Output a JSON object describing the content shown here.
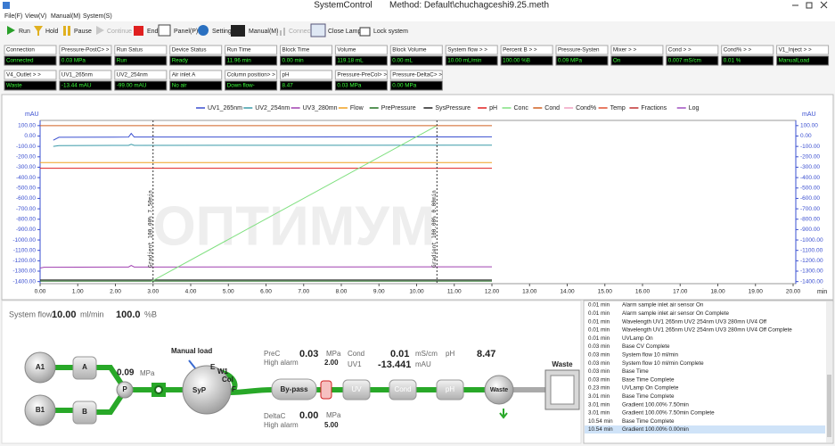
{
  "window": {
    "title": "SystemControl",
    "method": "Method:  Default\\chuchagceshi9.25.meth"
  },
  "menu": [
    "File(F)",
    "View(V)",
    "Manual(M)",
    "System(S)"
  ],
  "toolbar": [
    "Run",
    "Hold",
    "Pause",
    "Continue",
    "End",
    "Panel(P)",
    "Setting",
    "Manual(M)",
    "Connect",
    "Close Lamp",
    "Lock system"
  ],
  "status": [
    [
      {
        "label": "Connection",
        "value": "Connected"
      },
      {
        "label": "Pressure-PostC> >",
        "value": "0.03 MPa"
      },
      {
        "label": "Run Satus",
        "value": "Run"
      },
      {
        "label": "Device Status",
        "value": "Ready"
      },
      {
        "label": "Run Time",
        "value": "11.96 min"
      },
      {
        "label": "Block Time",
        "value": "0.00 min"
      },
      {
        "label": "Volume",
        "value": "119.18 mL"
      },
      {
        "label": "Block Volume",
        "value": "0.00 mL"
      },
      {
        "label": "System flow   > >",
        "value": "10.00 mL/min"
      },
      {
        "label": "Percent B   > >",
        "value": "100.00 %B"
      },
      {
        "label": "Pressure-Systen",
        "value": "0.09 MPa"
      },
      {
        "label": "Mixer        > >",
        "value": "On"
      },
      {
        "label": "Cond         > >",
        "value": "0.007 mS/cm"
      },
      {
        "label": "Cond%       > >",
        "value": "0.01 %"
      },
      {
        "label": "V1_Inject   > >",
        "value": "ManualLoad"
      }
    ],
    [
      {
        "label": "V4_Outlet    > >",
        "value": "Waste"
      },
      {
        "label": "UV1_265nm",
        "value": "-13.44 mAU"
      },
      {
        "label": "UV2_254nm",
        "value": "-99.00 mAU"
      },
      {
        "label": "Air inlet A",
        "value": "No air"
      },
      {
        "label": "Column position> >",
        "value": "Down flow-"
      },
      {
        "label": "pH",
        "value": "8.47"
      },
      {
        "label": "Pressure-PreCol> >",
        "value": "0.03 MPa"
      },
      {
        "label": "Pressure-DeltaC> >",
        "value": "0.00 MPa"
      }
    ]
  ],
  "chart": {
    "type": "line",
    "y_label": "mAU",
    "x_label": "min",
    "watermark": "ОПТИМУМ",
    "xlim": [
      0,
      20
    ],
    "ylim": [
      -1420,
      150
    ],
    "xticks": [
      {
        "value": 0,
        "label": "0.00"
      },
      {
        "value": 1,
        "label": "1.00"
      },
      {
        "value": 2,
        "label": "2.00"
      },
      {
        "value": 3,
        "label": "3.00"
      },
      {
        "value": 4,
        "label": "4.00"
      },
      {
        "value": 5,
        "label": "5.00"
      },
      {
        "value": 6,
        "label": "6.00"
      },
      {
        "value": 7,
        "label": "7.00"
      },
      {
        "value": 8,
        "label": "8.00"
      },
      {
        "value": 9,
        "label": "9.00"
      },
      {
        "value": 10,
        "label": "10.00"
      },
      {
        "value": 11,
        "label": "11.00"
      },
      {
        "value": 12,
        "label": "12.00"
      },
      {
        "value": 13,
        "label": "13.00"
      },
      {
        "value": 14,
        "label": "14.00"
      },
      {
        "value": 15,
        "label": "15.00"
      },
      {
        "value": 16,
        "label": "16.00"
      },
      {
        "value": 17,
        "label": "17.00"
      },
      {
        "value": 18,
        "label": "18.00"
      },
      {
        "value": 19,
        "label": "19.00"
      },
      {
        "value": 20,
        "label": "20.00"
      }
    ],
    "yticks": [
      {
        "value": 100,
        "label": "100.00"
      },
      {
        "value": 0,
        "label": "0.00"
      },
      {
        "value": -100,
        "label": "-100.00"
      },
      {
        "value": -200,
        "label": "-200.00"
      },
      {
        "value": -300,
        "label": "-300.00"
      },
      {
        "value": -400,
        "label": "-400.00"
      },
      {
        "value": -500,
        "label": "-500.00"
      },
      {
        "value": -600,
        "label": "-600.00"
      },
      {
        "value": -700,
        "label": "-700.00"
      },
      {
        "value": -800,
        "label": "-800.00"
      },
      {
        "value": -900,
        "label": "-900.00"
      },
      {
        "value": -1000,
        "label": "-1000.00"
      },
      {
        "value": -1100,
        "label": "-1100.00"
      },
      {
        "value": -1200,
        "label": "-1200.00"
      },
      {
        "value": -1300,
        "label": "-1300.00"
      },
      {
        "value": -1400,
        "label": "-1400.00"
      }
    ],
    "series": [
      {
        "name": "UV1_265nm",
        "color": "#3a4fd0",
        "x": [
          0.35,
          0.5,
          2.35,
          2.42,
          2.5,
          12
        ],
        "values": [
          -40,
          -12,
          -10,
          25,
          -10,
          -8
        ]
      },
      {
        "name": "UV2_254nm",
        "color": "#3a9aa8",
        "x": [
          0.35,
          0.5,
          2.35,
          2.42,
          2.5,
          12
        ],
        "values": [
          -100,
          -92,
          -90,
          -80,
          -90,
          -88
        ]
      },
      {
        "name": "UV3_280mn",
        "color": "#a040b0",
        "x": [
          0,
          0.1,
          2.35,
          2.42,
          2.5,
          12
        ],
        "values": [
          -1270,
          -1262,
          -1260,
          -1245,
          -1260,
          -1258
        ]
      },
      {
        "name": "Flow",
        "color": "#f0a020",
        "x": [
          0,
          12
        ],
        "values": [
          -255,
          -255
        ]
      },
      {
        "name": "PrePressure",
        "color": "#207020",
        "x": [
          0,
          12
        ],
        "values": [
          -1395,
          -1395
        ]
      },
      {
        "name": "SysPressure",
        "color": "#202020",
        "x": [
          0,
          12
        ],
        "values": [
          -1385,
          -1385
        ]
      },
      {
        "name": "pH",
        "color": "#e02020",
        "x": [
          0,
          12
        ],
        "values": [
          -310,
          -310
        ]
      },
      {
        "name": "Conc",
        "color": "#80e080",
        "x": [
          2.95,
          10.54
        ],
        "values": [
          -1400,
          100
        ]
      },
      {
        "name": "Cond",
        "color": "#d06020",
        "x": [
          0,
          12
        ],
        "values": [
          100,
          100
        ]
      },
      {
        "name": "Cond%",
        "color": "#f0a0c0",
        "x": [],
        "values": []
      },
      {
        "name": "Temp",
        "color": "#e05030",
        "x": [],
        "values": []
      },
      {
        "name": "Fractions",
        "color": "#c03030",
        "x": [],
        "values": []
      },
      {
        "name": "Log",
        "color": "#a050c0",
        "x": [],
        "values": []
      }
    ],
    "annotations": [
      {
        "x": 3.0,
        "text": "Gradient  100.00%  7.50min"
      },
      {
        "x": 10.54,
        "text": "Gradient  100.00%  0.00min"
      }
    ]
  },
  "diagram": {
    "system_flow": {
      "label": "System flow",
      "value": "10.00",
      "unit": "ml/min"
    },
    "percent_b": {
      "value": "100.0",
      "unit": "%B"
    },
    "sources": [
      "A1",
      "B1"
    ],
    "valves": [
      "A",
      "B"
    ],
    "pump": {
      "label": "P",
      "pressure": "0.09",
      "unit": "MPa"
    },
    "injector": {
      "title": "Manual load",
      "label": "SyP",
      "ports": [
        "E",
        "W1",
        "Col",
        "F"
      ]
    },
    "prec": {
      "label": "PreC",
      "value": "0.03",
      "unit": "MPa",
      "alarm_label": "High alarm",
      "alarm_value": "2.00"
    },
    "deltac": {
      "label": "DeltaC",
      "value": "0.00",
      "unit": "MPa",
      "alarm_label": "High alarm",
      "alarm_value": "5.00"
    },
    "cond": {
      "label": "Cond",
      "value": "0.01",
      "unit": "mS/cm"
    },
    "uv1": {
      "label": "UV1",
      "value": "-13.441",
      "unit": "mAU"
    },
    "ph": {
      "label": "pH",
      "value": "8.47"
    },
    "modules": [
      "By-pass",
      "UV",
      "Cond",
      "pH",
      "Waste"
    ],
    "waste_box": "Waste"
  },
  "log": [
    {
      "time": "0.01 min",
      "text": "Alarm sample inlet air sensor On"
    },
    {
      "time": "0.01 min",
      "text": "Alarm sample inlet air sensor On Complete"
    },
    {
      "time": "0.01 min",
      "text": "Wavelength UV1 265nm UV2 254nm UV3 280mn UV4 Off"
    },
    {
      "time": "0.01 min",
      "text": "Wavelength UV1 265nm UV2 254nm UV3 280mn UV4 Off Complete"
    },
    {
      "time": "0.01 min",
      "text": "UVLamp On"
    },
    {
      "time": "0.03 min",
      "text": "Base  CV Complete"
    },
    {
      "time": "0.03 min",
      "text": "System flow  10 ml/min"
    },
    {
      "time": "0.03 min",
      "text": "System flow  10 ml/min Complete"
    },
    {
      "time": "0.03 min",
      "text": "Base  Time"
    },
    {
      "time": "0.03 min",
      "text": "Base  Time Complete"
    },
    {
      "time": "0.23 min",
      "text": "UVLamp On Complete"
    },
    {
      "time": "3.01 min",
      "text": "Base  Time Complete"
    },
    {
      "time": "3.01 min",
      "text": "Gradient  100.00%  7.50min"
    },
    {
      "time": "3.01 min",
      "text": "Gradient  100.00%  7.50min Complete"
    },
    {
      "time": "10.54 min",
      "text": "Base  Time Complete"
    },
    {
      "time": "10.54 min",
      "text": "Gradient  100.00%  0.00min"
    }
  ]
}
